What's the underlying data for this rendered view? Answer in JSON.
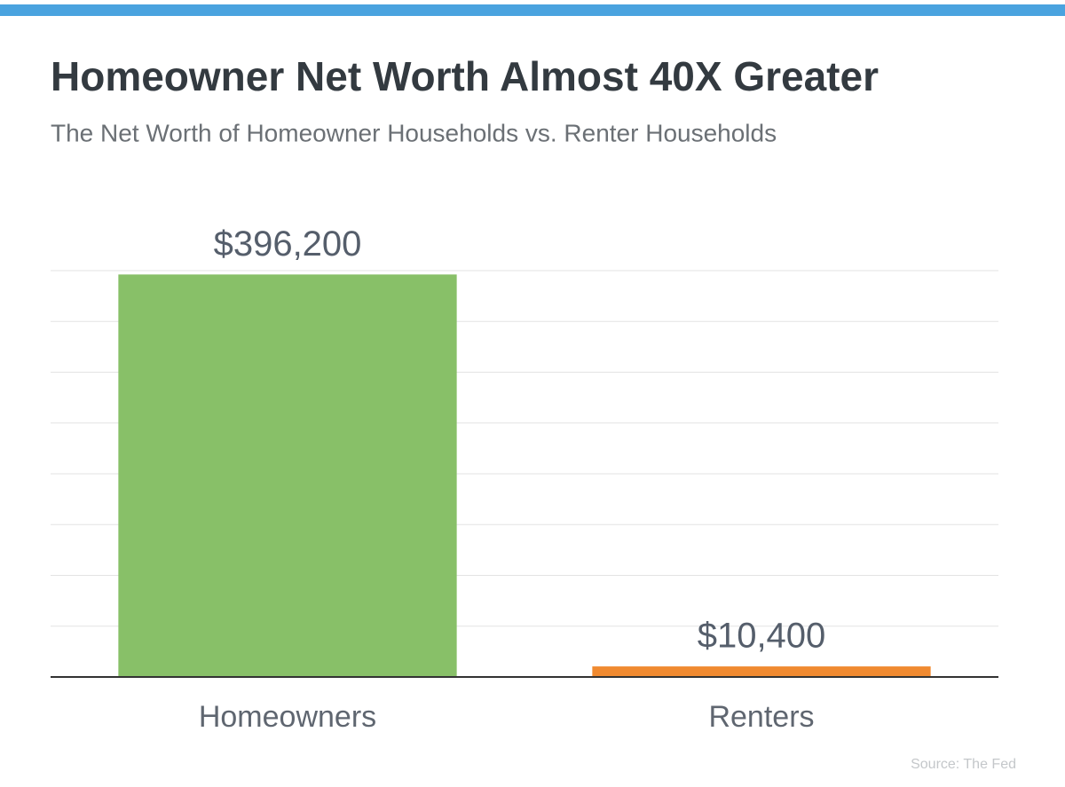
{
  "chart_data": {
    "type": "bar",
    "title": "Homeowner Net Worth Almost 40X Greater",
    "subtitle": "The Net Worth of Homeowner Households vs. Renter Households",
    "categories": [
      "Homeowners",
      "Renters"
    ],
    "values": [
      396200,
      10400
    ],
    "value_labels": [
      "$396,200",
      "$10,400"
    ],
    "colors": [
      "#88c068",
      "#f08a30"
    ],
    "ylim": [
      0,
      400000
    ],
    "yticks": [
      0,
      50000,
      100000,
      150000,
      200000,
      250000,
      300000,
      350000,
      400000
    ],
    "grid": true,
    "source": "Source: The Fed"
  }
}
